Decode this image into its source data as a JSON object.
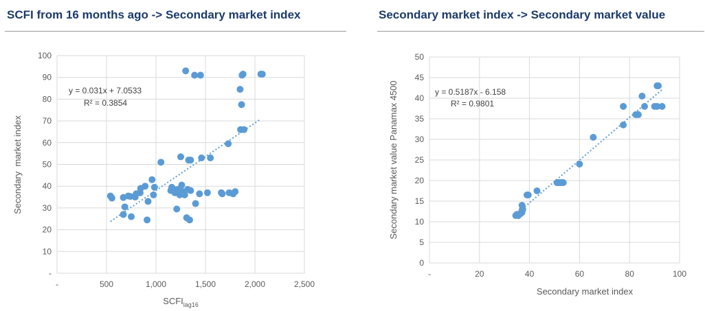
{
  "chart_data": [
    {
      "type": "scatter",
      "title": "SCFI from 16 months ago -> Secondary market index",
      "xlabel": "SCFI",
      "xlabel_sub": "lag16",
      "ylabel": "Secondary  market index",
      "xlim": [
        0,
        2500
      ],
      "ylim": [
        0,
        100
      ],
      "x_ticks": [
        "-",
        "500",
        "1,000",
        "1,500",
        "2,000",
        "2,500"
      ],
      "y_ticks": [
        "-",
        "10",
        "20",
        "30",
        "40",
        "50",
        "60",
        "70",
        "80",
        "90",
        "100"
      ],
      "grid": "both",
      "trendline": {
        "slope": 0.031,
        "intercept": 7.0533,
        "x_range": [
          540,
          2060
        ]
      },
      "equation": "y = 0.031x + 7.0533",
      "r2_label": "R² = 0.3854",
      "point_color": "#5b9bd5",
      "series": [
        {
          "points": [
            [
              540,
              35.5
            ],
            [
              555,
              34.5
            ],
            [
              670,
              34.8
            ],
            [
              670,
              27
            ],
            [
              685,
              30.5
            ],
            [
              720,
              35.5
            ],
            [
              740,
              35.3
            ],
            [
              750,
              26
            ],
            [
              790,
              35
            ],
            [
              800,
              36.5
            ],
            [
              840,
              37
            ],
            [
              845,
              39
            ],
            [
              890,
              40
            ],
            [
              910,
              24.5
            ],
            [
              920,
              33
            ],
            [
              960,
              43
            ],
            [
              975,
              36
            ],
            [
              985,
              39.5
            ],
            [
              1050,
              51
            ],
            [
              1150,
              38
            ],
            [
              1160,
              39.5
            ],
            [
              1180,
              38.5
            ],
            [
              1190,
              37
            ],
            [
              1210,
              29.5
            ],
            [
              1220,
              38.5
            ],
            [
              1240,
              36
            ],
            [
              1250,
              53.5
            ],
            [
              1260,
              40.5
            ],
            [
              1270,
              37.5
            ],
            [
              1290,
              36
            ],
            [
              1300,
              93
            ],
            [
              1310,
              25.5
            ],
            [
              1320,
              38.5
            ],
            [
              1330,
              52
            ],
            [
              1340,
              24.5
            ],
            [
              1350,
              52
            ],
            [
              1350,
              38
            ],
            [
              1390,
              91
            ],
            [
              1400,
              32
            ],
            [
              1440,
              36.5
            ],
            [
              1450,
              91
            ],
            [
              1460,
              53
            ],
            [
              1520,
              37
            ],
            [
              1550,
              53
            ],
            [
              1660,
              37
            ],
            [
              1670,
              36.5
            ],
            [
              1730,
              59.5
            ],
            [
              1740,
              37
            ],
            [
              1780,
              36.5
            ],
            [
              1800,
              37.5
            ],
            [
              1850,
              84.5
            ],
            [
              1855,
              66
            ],
            [
              1865,
              77.5
            ],
            [
              1870,
              91
            ],
            [
              1880,
              91.5
            ],
            [
              1890,
              66
            ],
            [
              2060,
              91.5
            ],
            [
              2075,
              91.5
            ]
          ]
        }
      ]
    },
    {
      "type": "scatter",
      "title": "Secondary market index -> Secondary market value",
      "xlabel": "Secondary market index",
      "ylabel": "Secondary market value Panamax 4500",
      "xlim": [
        0,
        100
      ],
      "ylim": [
        0,
        50
      ],
      "x_ticks": [
        "-",
        "20",
        "40",
        "60",
        "80",
        "100"
      ],
      "y_ticks": [
        "0",
        "5",
        "10",
        "15",
        "20",
        "25",
        "30",
        "35",
        "40",
        "45",
        "50"
      ],
      "grid": "both",
      "trendline": {
        "slope": 0.5187,
        "intercept": -6.158,
        "x_range": [
          35,
          93
        ]
      },
      "equation": "y = 0.5187x - 6.158",
      "r2_label": "R² = 0.9801",
      "point_color": "#5b9bd5",
      "series": [
        {
          "points": [
            [
              34.5,
              11.5
            ],
            [
              35,
              11.8
            ],
            [
              35.5,
              11.5
            ],
            [
              36,
              11.8
            ],
            [
              36.5,
              12
            ],
            [
              37,
              12.3
            ],
            [
              37,
              12.8
            ],
            [
              37,
              14
            ],
            [
              37.3,
              13
            ],
            [
              39,
              16.5
            ],
            [
              39.5,
              16.5
            ],
            [
              43,
              17.5
            ],
            [
              51,
              19.5
            ],
            [
              51.5,
              19.5
            ],
            [
              52,
              19.5
            ],
            [
              52.5,
              19.5
            ],
            [
              53,
              19.5
            ],
            [
              53.5,
              19.5
            ],
            [
              60,
              24
            ],
            [
              65.5,
              30.5
            ],
            [
              77.5,
              33.5
            ],
            [
              77.5,
              38
            ],
            [
              82.5,
              36
            ],
            [
              83.5,
              36
            ],
            [
              85,
              40.5
            ],
            [
              86,
              38
            ],
            [
              90,
              38
            ],
            [
              91,
              43
            ],
            [
              91.5,
              43
            ],
            [
              91,
              38
            ],
            [
              93,
              38
            ]
          ]
        }
      ]
    }
  ]
}
